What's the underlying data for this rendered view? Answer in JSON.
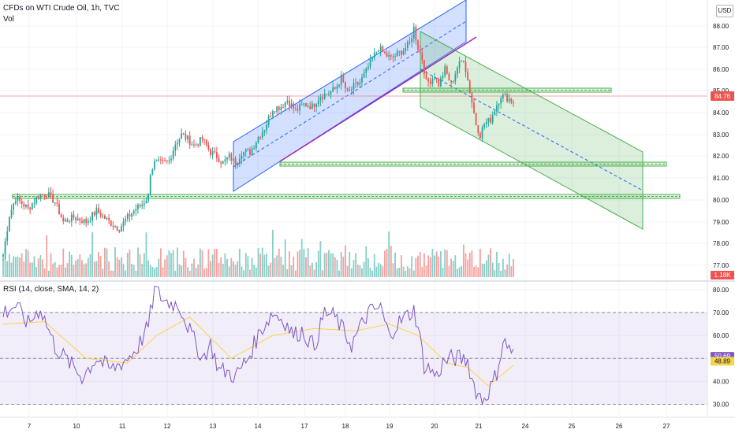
{
  "header": {
    "symbol_title": "CFDs on WTI Crude Oil, 1h, TVC",
    "volume_label": "Vol",
    "currency": "USD"
  },
  "rsi_header": "RSI (14, close, SMA, 14, 2)",
  "colors": {
    "up": "#26a69a",
    "down": "#ef5350",
    "rsi_line": "#7e57c2",
    "rsi_ma": "#f7d44a",
    "rsi_band": "#7e57c2",
    "channel_up_fill": "#2962ff",
    "channel_down_fill": "#4caf50",
    "support_line": "#4caf50",
    "trendline": "#9c27b0",
    "current_price_line": "#ef5350"
  },
  "chart_data": [
    {
      "type": "candlestick",
      "title": "CFDs on WTI Crude Oil, 1h, TVC",
      "x_tick_labels": [
        "7",
        "10",
        "11",
        "12",
        "13",
        "14",
        "17",
        "18",
        "19",
        "20",
        "21",
        "24",
        "25",
        "26",
        "27"
      ],
      "y_tick_labels": [
        "88.00",
        "87.00",
        "86.00",
        "85.00",
        "84.00",
        "83.00",
        "82.00",
        "81.00",
        "80.00",
        "79.00",
        "78.00",
        "77.00"
      ],
      "ylim": [
        76.4,
        88.5
      ],
      "last_price": 84.76,
      "last_price_label": "84.76",
      "volume_label": "1.18K",
      "close_waypoints": [
        [
          0,
          77.5
        ],
        [
          3,
          79.3
        ],
        [
          6,
          80.1
        ],
        [
          12,
          79.6
        ],
        [
          17,
          80.2
        ],
        [
          21,
          80.3
        ],
        [
          25,
          79.9
        ],
        [
          29,
          79.0
        ],
        [
          34,
          79.2
        ],
        [
          40,
          79.0
        ],
        [
          45,
          79.5
        ],
        [
          51,
          79.0
        ],
        [
          56,
          78.7
        ],
        [
          60,
          79.2
        ],
        [
          64,
          79.6
        ],
        [
          67,
          79.8
        ],
        [
          70,
          80.2
        ],
        [
          71,
          81.3
        ],
        [
          73,
          81.7
        ],
        [
          77,
          81.7
        ],
        [
          80,
          81.8
        ],
        [
          83,
          82.6
        ],
        [
          86,
          83.0
        ],
        [
          89,
          82.8
        ],
        [
          92,
          82.5
        ],
        [
          96,
          82.8
        ],
        [
          100,
          82.2
        ],
        [
          103,
          82.0
        ],
        [
          106,
          81.7
        ],
        [
          109,
          82.0
        ],
        [
          112,
          81.7
        ],
        [
          115,
          82.2
        ],
        [
          119,
          82.2
        ],
        [
          123,
          82.9
        ],
        [
          126,
          83.3
        ],
        [
          130,
          84.2
        ],
        [
          134,
          84.3
        ],
        [
          137,
          84.6
        ],
        [
          141,
          84.1
        ],
        [
          145,
          84.4
        ],
        [
          149,
          84.3
        ],
        [
          153,
          84.8
        ],
        [
          157,
          84.9
        ],
        [
          160,
          85.1
        ],
        [
          163,
          85.6
        ],
        [
          166,
          84.9
        ],
        [
          169,
          85.2
        ],
        [
          172,
          85.4
        ],
        [
          175,
          85.9
        ],
        [
          178,
          86.5
        ],
        [
          181,
          87.0
        ],
        [
          184,
          86.7
        ],
        [
          187,
          86.5
        ],
        [
          190,
          86.7
        ],
        [
          193,
          86.9
        ],
        [
          196,
          87.2
        ],
        [
          198,
          87.9
        ],
        [
          200,
          87.0
        ],
        [
          202,
          86.5
        ],
        [
          204,
          85.4
        ],
        [
          206,
          85.5
        ],
        [
          208,
          85.7
        ],
        [
          210,
          85.3
        ],
        [
          213,
          86.0
        ],
        [
          216,
          85.3
        ],
        [
          219,
          86.1
        ],
        [
          222,
          86.5
        ],
        [
          224,
          85.5
        ],
        [
          226,
          84.5
        ],
        [
          228,
          83.5
        ],
        [
          230,
          83.0
        ],
        [
          232,
          83.5
        ],
        [
          235,
          83.7
        ],
        [
          238,
          84.4
        ],
        [
          240,
          84.8
        ],
        [
          243,
          84.7
        ],
        [
          246,
          84.5
        ]
      ],
      "volume_range": [
        0,
        5
      ]
    },
    {
      "type": "line",
      "title": "RSI (14, close, SMA, 14, 2)",
      "series": [
        {
          "values_waypoints": [
            [
              0,
              70
            ],
            [
              6,
              73
            ],
            [
              12,
              65
            ],
            [
              18,
              72
            ],
            [
              25,
              55
            ],
            [
              32,
              48
            ],
            [
              38,
              42
            ],
            [
              45,
              50
            ],
            [
              52,
              45
            ],
            [
              60,
              50
            ],
            [
              65,
              55
            ],
            [
              70,
              64
            ],
            [
              73,
              80
            ],
            [
              78,
              75
            ],
            [
              85,
              73
            ],
            [
              90,
              62
            ],
            [
              96,
              50
            ],
            [
              100,
              56
            ],
            [
              104,
              45
            ],
            [
              108,
              44
            ],
            [
              112,
              42
            ],
            [
              118,
              50
            ],
            [
              124,
              62
            ],
            [
              130,
              70
            ],
            [
              136,
              66
            ],
            [
              140,
              60
            ],
            [
              144,
              62
            ],
            [
              150,
              55
            ],
            [
              155,
              70
            ],
            [
              160,
              68
            ],
            [
              164,
              62
            ],
            [
              168,
              56
            ],
            [
              172,
              63
            ],
            [
              176,
              70
            ],
            [
              182,
              72
            ],
            [
              186,
              60
            ],
            [
              190,
              65
            ],
            [
              194,
              68
            ],
            [
              198,
              71
            ],
            [
              200,
              64
            ],
            [
              203,
              47
            ],
            [
              206,
              45
            ],
            [
              209,
              42
            ],
            [
              212,
              48
            ],
            [
              216,
              50
            ],
            [
              220,
              50
            ],
            [
              224,
              49
            ],
            [
              226,
              41
            ],
            [
              228,
              36
            ],
            [
              231,
              32
            ],
            [
              233,
              34
            ],
            [
              236,
              39
            ],
            [
              238,
              44
            ],
            [
              241,
              57
            ],
            [
              244,
              55
            ],
            [
              246,
              52
            ]
          ]
        },
        {
          "values_waypoints": [
            [
              0,
              65
            ],
            [
              20,
              66
            ],
            [
              40,
              50
            ],
            [
              60,
              48
            ],
            [
              74,
              60
            ],
            [
              90,
              68
            ],
            [
              110,
              50
            ],
            [
              130,
              60
            ],
            [
              150,
              63
            ],
            [
              170,
              62
            ],
            [
              186,
              65
            ],
            [
              200,
              60
            ],
            [
              214,
              48
            ],
            [
              224,
              46
            ],
            [
              234,
              38
            ],
            [
              246,
              47
            ]
          ]
        }
      ],
      "y_tick_labels": [
        "80.00",
        "70.00",
        "60.00",
        "50.00",
        "40.00",
        "30.00"
      ],
      "ylim": [
        25,
        82
      ],
      "bands": [
        70,
        30
      ],
      "midline": 50,
      "last_rsi_label": "50.69",
      "last_ma_label": "48.89"
    }
  ]
}
